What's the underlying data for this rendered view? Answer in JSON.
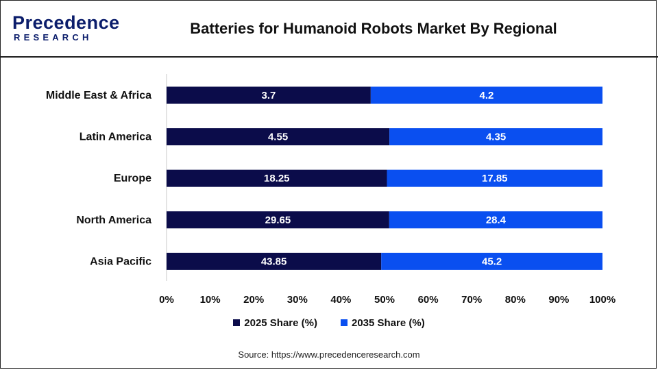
{
  "header": {
    "logo_top": "Precedence",
    "logo_bottom": "RESEARCH",
    "title": "Batteries for Humanoid Robots Market By Regional"
  },
  "colors": {
    "series_2025": "#0b0c4a",
    "series_2035": "#0a4ff0",
    "brand": "#0b1d6b",
    "label_text": "#ffffff",
    "axis_text": "#111111",
    "grid": "#d9d9d9"
  },
  "chart_data": {
    "type": "bar",
    "orientation": "horizontal",
    "stacked": "percent",
    "title": "Batteries for Humanoid Robots Market By Regional",
    "categories": [
      "Middle East & Africa",
      "Latin America",
      "Europe",
      "North America",
      "Asia Pacific"
    ],
    "series": [
      {
        "name": "2025 Share (%)",
        "values": [
          3.7,
          4.55,
          18.25,
          29.65,
          43.85
        ]
      },
      {
        "name": "2035 Share (%)",
        "values": [
          4.2,
          4.35,
          17.85,
          28.4,
          45.2
        ]
      }
    ],
    "x_ticks": [
      "0%",
      "10%",
      "20%",
      "30%",
      "40%",
      "50%",
      "60%",
      "70%",
      "80%",
      "90%",
      "100%"
    ],
    "xlim": [
      0,
      100
    ],
    "grid": true,
    "legend_position": "bottom"
  },
  "source": "Source: https://www.precedenceresearch.com"
}
